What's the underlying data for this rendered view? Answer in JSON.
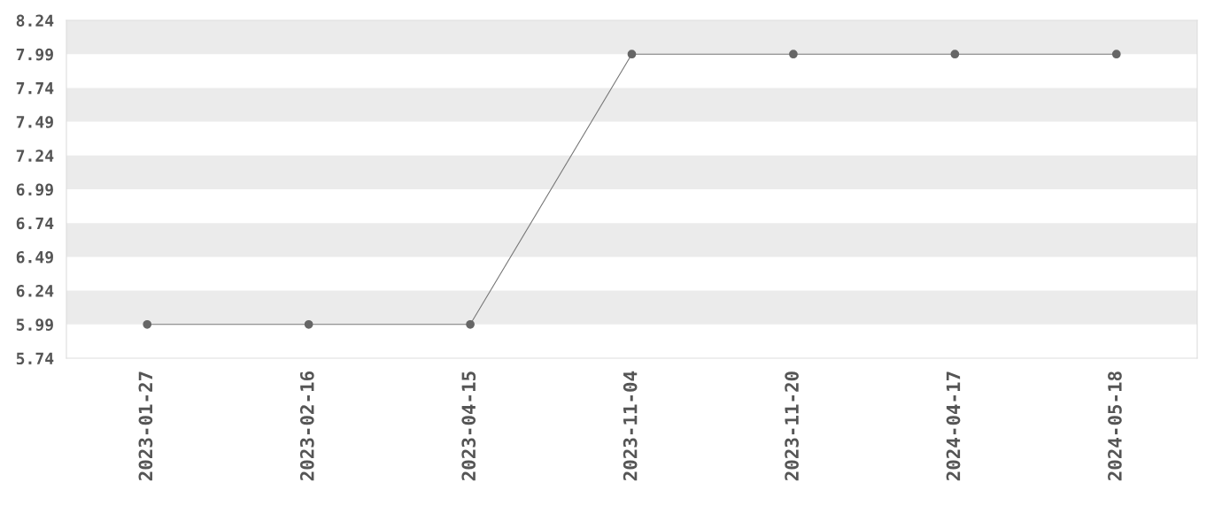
{
  "chart_data": {
    "type": "line",
    "categories": [
      "2023-01-27",
      "2023-02-16",
      "2023-04-15",
      "2023-11-04",
      "2023-11-20",
      "2024-04-17",
      "2024-05-18"
    ],
    "series": [
      {
        "color": "#777777",
        "values": [
          5.99,
          5.99,
          5.99,
          7.99,
          7.99,
          7.99,
          7.99
        ]
      }
    ],
    "marker": "circle",
    "ylim": [
      5.74,
      8.24
    ],
    "yticks": [
      5.74,
      5.99,
      6.24,
      6.49,
      6.74,
      6.99,
      7.24,
      7.49,
      7.74,
      7.99,
      8.24
    ],
    "bands": [
      {
        "axis": "y",
        "from": 5.99,
        "to": 6.24,
        "color": "#ebebeb"
      },
      {
        "axis": "y",
        "from": 6.49,
        "to": 6.74,
        "color": "#ebebeb"
      },
      {
        "axis": "y",
        "from": 6.99,
        "to": 7.24,
        "color": "#ebebeb"
      },
      {
        "axis": "y",
        "from": 7.49,
        "to": 7.74,
        "color": "#ebebeb"
      },
      {
        "axis": "y",
        "from": 7.99,
        "to": 8.24,
        "color": "#ebebeb"
      }
    ],
    "grid": false
  }
}
